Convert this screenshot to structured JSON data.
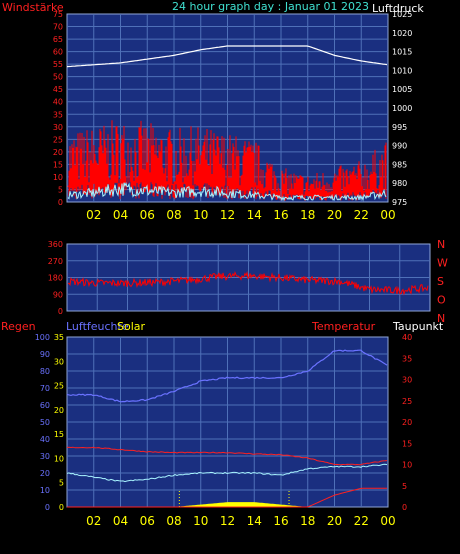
{
  "header": {
    "left_label": "Windstärke",
    "title": "24 hour graph day : Januar 01 2023",
    "right_label": "Luftdruck"
  },
  "x_ticks": [
    "02",
    "04",
    "06",
    "08",
    "10",
    "12",
    "14",
    "16",
    "18",
    "20",
    "22",
    "00"
  ],
  "panel2": {
    "y_ticks": [
      "360",
      "270",
      "180",
      "90",
      "0"
    ],
    "dir_labels": [
      "N",
      "W",
      "S",
      "O",
      "N"
    ]
  },
  "panel3": {
    "labels": {
      "regen": "Regen",
      "luftfeuchte": "Luftfeuchte",
      "solar": "Solar",
      "temperatur": "Temperatur",
      "taupunkt": "Taupunkt"
    },
    "y_left_ticks": [
      "100",
      "90",
      "80",
      "70",
      "60",
      "50",
      "40",
      "30",
      "20",
      "10",
      "0"
    ],
    "y_mid_ticks": [
      "35",
      "30",
      "25",
      "20",
      "15",
      "10",
      "5",
      "0"
    ],
    "y_right_ticks": [
      "40",
      "35",
      "30",
      "25",
      "20",
      "15",
      "10",
      "5",
      "0"
    ]
  },
  "colors": {
    "panel_bg": "#1a2f80",
    "grid": "#4f70b8",
    "wind": "#ff0000",
    "pressure": "#ffffff",
    "wind_avg": "#a8f4ff",
    "temp": "#ff2020",
    "humidity": "#6a72ff",
    "dewpoint": "#a8f4ff",
    "solar": "#ffff00",
    "rain": "#ff2020",
    "title": "#40e0d0",
    "ticks": "#ffff00"
  },
  "chart_data": [
    {
      "type": "line",
      "panel": "wind-pressure",
      "x_hours": [
        0,
        2,
        4,
        6,
        8,
        10,
        12,
        14,
        16,
        18,
        20,
        22,
        24
      ],
      "xlim": [
        0,
        24
      ],
      "y_left_ticks": [
        "75",
        "70",
        "65",
        "60",
        "55",
        "50",
        "45",
        "40",
        "35",
        "30",
        "25",
        "20",
        "15",
        "10",
        "5",
        "0"
      ],
      "y_right_ticks": [
        "1025",
        "1020",
        "1015",
        "1010",
        "1005",
        "1000",
        "995",
        "990",
        "985",
        "980",
        "975"
      ],
      "ylim_left": [
        0,
        75
      ],
      "ylim_right": [
        975,
        1025
      ],
      "series": [
        {
          "name": "Luftdruck",
          "axis": "right",
          "values": [
            1011,
            1011.5,
            1012,
            1013,
            1014,
            1015.5,
            1016.5,
            1016.5,
            1016.5,
            1016.5,
            1014,
            1012.5,
            1011.5
          ]
        },
        {
          "name": "Windstärke",
          "axis": "left",
          "values": [
            20,
            22,
            24,
            23,
            21,
            22,
            20,
            18,
            10,
            8,
            10,
            12,
            18
          ]
        },
        {
          "axis": "left",
          "values": [
            3,
            4,
            6,
            5,
            4,
            5,
            4,
            3,
            2,
            2,
            2,
            2,
            4
          ]
        }
      ]
    },
    {
      "type": "line",
      "panel": "wind-direction",
      "x_hours": [
        0,
        2,
        4,
        6,
        8,
        10,
        12,
        14,
        16,
        18,
        20,
        22,
        24
      ],
      "xlim": [
        0,
        24
      ],
      "ylim": [
        0,
        360
      ],
      "series": [
        {
          "values": [
            160,
            150,
            150,
            155,
            165,
            185,
            190,
            180,
            165,
            160,
            115,
            110,
            125
          ]
        }
      ]
    },
    {
      "type": "line",
      "panel": "weather",
      "x_hours": [
        0,
        2,
        4,
        6,
        8,
        10,
        12,
        14,
        16,
        18,
        20,
        22,
        24
      ],
      "xlim": [
        0,
        24
      ],
      "ylim_left": [
        0,
        100
      ],
      "ylim_mid": [
        0,
        35
      ],
      "ylim_right": [
        0,
        40
      ],
      "series": [
        {
          "name": "Luftfeuchte",
          "axis": "left",
          "values": [
            66,
            66,
            62,
            63,
            68,
            74,
            76,
            76,
            76,
            80,
            92,
            92,
            83
          ]
        },
        {
          "name": "Temperatur",
          "axis": "right",
          "values": [
            14,
            14,
            13.5,
            13,
            12.8,
            12.8,
            12.8,
            12.5,
            12.3,
            11.5,
            10,
            10,
            11
          ]
        },
        {
          "name": "Taupunkt",
          "axis": "right",
          "values": [
            8,
            7,
            6,
            6.5,
            7.5,
            8,
            8,
            8,
            7.5,
            9,
            9.5,
            9.5,
            10
          ]
        },
        {
          "name": "Solar",
          "axis": "mid",
          "values": [
            0,
            0,
            0,
            0,
            0,
            0.5,
            1,
            1,
            0.5,
            0,
            0,
            0,
            0
          ]
        },
        {
          "name": "Regen",
          "axis": "left",
          "values": [
            0,
            0,
            0,
            0,
            0,
            0,
            0,
            0,
            0,
            0,
            7,
            11,
            11
          ]
        }
      ]
    }
  ]
}
